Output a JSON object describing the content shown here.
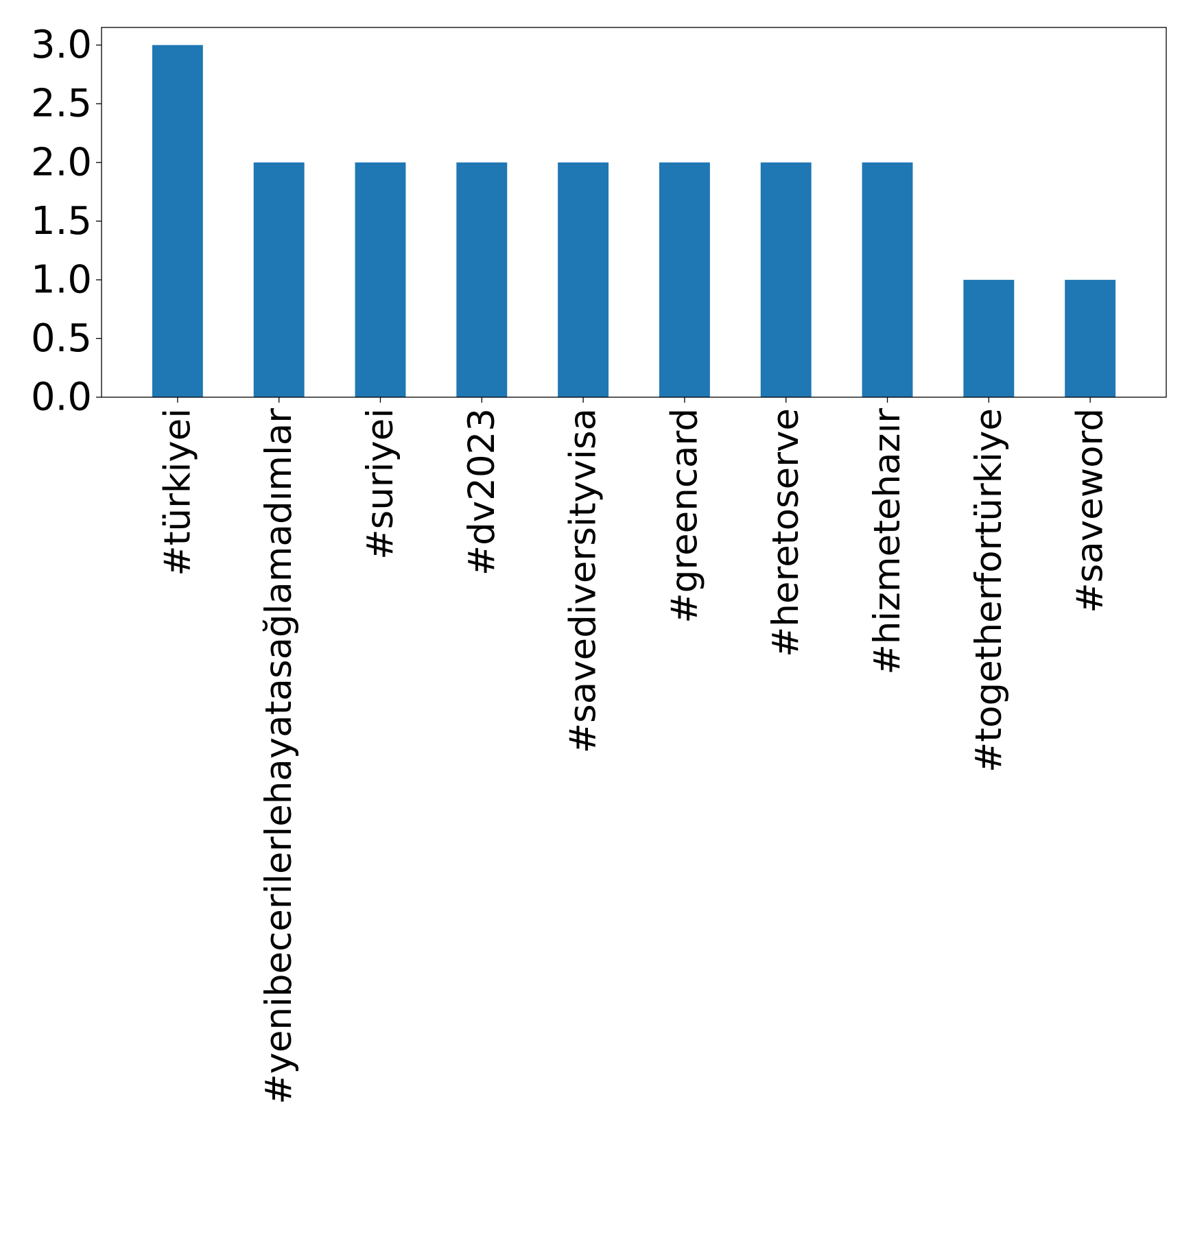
{
  "chart_data": {
    "type": "bar",
    "title": "",
    "xlabel": "",
    "ylabel": "",
    "categories": [
      "#türkiyei",
      "#yenibecerilerlehayatasağlamadımlar",
      "#suriyei",
      "#dv2023",
      "#savediversityvisa",
      "#greencard",
      "#heretoserve",
      "#hizmetehazır",
      "#togetherfortürkiye",
      "#saveword"
    ],
    "values": [
      3,
      2,
      2,
      2,
      2,
      2,
      2,
      2,
      1,
      1
    ],
    "ylim": [
      0,
      3.15
    ],
    "yticks": [
      "0.0",
      "0.5",
      "1.0",
      "1.5",
      "2.0",
      "2.5",
      "3.0"
    ],
    "bar_color": "#1f77b4",
    "grid": false,
    "legend": "none"
  }
}
